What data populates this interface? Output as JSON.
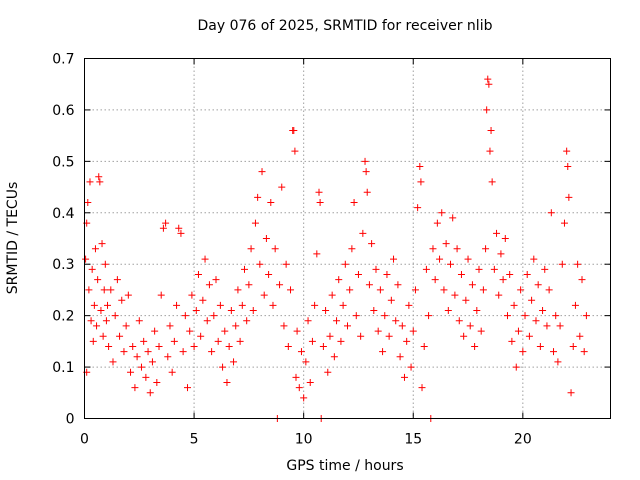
{
  "chart_data": {
    "type": "scatter",
    "title": "Day 076 of 2025, SRMTID for receiver nlib",
    "xlabel": "GPS time / hours",
    "ylabel": "SRMTID / TECUs",
    "xlim": [
      0,
      24
    ],
    "ylim": [
      0,
      0.7
    ],
    "xticks": [
      0,
      5,
      10,
      15,
      20
    ],
    "xtick_labels": [
      "0",
      "5",
      "10",
      "15",
      "20"
    ],
    "yticks": [
      0,
      0.1,
      0.2,
      0.3,
      0.4,
      0.5,
      0.6,
      0.7
    ],
    "ytick_labels": [
      "0",
      "0.1",
      "0.2",
      "0.3",
      "0.4",
      "0.5",
      "0.6",
      "0.7"
    ],
    "grid": true,
    "marker": "+",
    "color": "#ff0000",
    "series": [
      {
        "name": "SRMTID",
        "points": [
          [
            0.05,
            0.31
          ],
          [
            0.1,
            0.38
          ],
          [
            0.1,
            0.09
          ],
          [
            0.15,
            0.42
          ],
          [
            0.2,
            0.25
          ],
          [
            0.25,
            0.46
          ],
          [
            0.3,
            0.19
          ],
          [
            0.35,
            0.29
          ],
          [
            0.4,
            0.15
          ],
          [
            0.45,
            0.22
          ],
          [
            0.5,
            0.33
          ],
          [
            0.55,
            0.18
          ],
          [
            0.6,
            0.27
          ],
          [
            0.65,
            0.47
          ],
          [
            0.7,
            0.46
          ],
          [
            0.75,
            0.21
          ],
          [
            0.8,
            0.34
          ],
          [
            0.85,
            0.16
          ],
          [
            0.9,
            0.25
          ],
          [
            0.95,
            0.3
          ],
          [
            1.0,
            0.19
          ],
          [
            1.05,
            0.22
          ],
          [
            1.1,
            0.14
          ],
          [
            1.2,
            0.25
          ],
          [
            1.3,
            0.11
          ],
          [
            1.4,
            0.2
          ],
          [
            1.5,
            0.27
          ],
          [
            1.6,
            0.16
          ],
          [
            1.7,
            0.23
          ],
          [
            1.8,
            0.13
          ],
          [
            1.9,
            0.18
          ],
          [
            2.0,
            0.24
          ],
          [
            2.1,
            0.09
          ],
          [
            2.2,
            0.14
          ],
          [
            2.3,
            0.06
          ],
          [
            2.4,
            0.12
          ],
          [
            2.5,
            0.19
          ],
          [
            2.6,
            0.1
          ],
          [
            2.7,
            0.15
          ],
          [
            2.8,
            0.08
          ],
          [
            2.9,
            0.13
          ],
          [
            3.0,
            0.05
          ],
          [
            3.1,
            0.11
          ],
          [
            3.2,
            0.17
          ],
          [
            3.3,
            0.07
          ],
          [
            3.4,
            0.14
          ],
          [
            3.5,
            0.24
          ],
          [
            3.6,
            0.37
          ],
          [
            3.7,
            0.38
          ],
          [
            3.8,
            0.12
          ],
          [
            3.9,
            0.18
          ],
          [
            4.0,
            0.09
          ],
          [
            4.1,
            0.15
          ],
          [
            4.2,
            0.22
          ],
          [
            4.3,
            0.37
          ],
          [
            4.4,
            0.36
          ],
          [
            4.5,
            0.13
          ],
          [
            4.6,
            0.2
          ],
          [
            4.7,
            0.06
          ],
          [
            4.8,
            0.17
          ],
          [
            4.9,
            0.24
          ],
          [
            5.0,
            0.14
          ],
          [
            5.1,
            0.21
          ],
          [
            5.2,
            0.28
          ],
          [
            5.3,
            0.16
          ],
          [
            5.4,
            0.23
          ],
          [
            5.5,
            0.31
          ],
          [
            5.6,
            0.19
          ],
          [
            5.7,
            0.26
          ],
          [
            5.8,
            0.13
          ],
          [
            5.9,
            0.2
          ],
          [
            6.0,
            0.27
          ],
          [
            6.1,
            0.15
          ],
          [
            6.2,
            0.22
          ],
          [
            6.3,
            0.1
          ],
          [
            6.4,
            0.17
          ],
          [
            6.5,
            0.07
          ],
          [
            6.6,
            0.14
          ],
          [
            6.7,
            0.21
          ],
          [
            6.8,
            0.11
          ],
          [
            6.9,
            0.18
          ],
          [
            7.0,
            0.25
          ],
          [
            7.1,
            0.15
          ],
          [
            7.2,
            0.22
          ],
          [
            7.3,
            0.29
          ],
          [
            7.4,
            0.19
          ],
          [
            7.5,
            0.26
          ],
          [
            7.6,
            0.33
          ],
          [
            7.7,
            0.21
          ],
          [
            7.8,
            0.38
          ],
          [
            7.9,
            0.43
          ],
          [
            8.0,
            0.3
          ],
          [
            8.1,
            0.48
          ],
          [
            8.2,
            0.24
          ],
          [
            8.3,
            0.35
          ],
          [
            8.4,
            0.28
          ],
          [
            8.5,
            0.42
          ],
          [
            8.6,
            0.22
          ],
          [
            8.7,
            0.33
          ],
          [
            8.8,
            0.0
          ],
          [
            8.9,
            0.26
          ],
          [
            9.0,
            0.45
          ],
          [
            9.1,
            0.18
          ],
          [
            9.2,
            0.3
          ],
          [
            9.3,
            0.14
          ],
          [
            9.4,
            0.25
          ],
          [
            9.5,
            0.56
          ],
          [
            9.55,
            0.56
          ],
          [
            9.6,
            0.52
          ],
          [
            9.65,
            0.08
          ],
          [
            9.7,
            0.17
          ],
          [
            9.8,
            0.06
          ],
          [
            9.9,
            0.13
          ],
          [
            10.0,
            0.04
          ],
          [
            10.1,
            0.11
          ],
          [
            10.2,
            0.19
          ],
          [
            10.3,
            0.07
          ],
          [
            10.4,
            0.15
          ],
          [
            10.5,
            0.22
          ],
          [
            10.6,
            0.32
          ],
          [
            10.7,
            0.44
          ],
          [
            10.75,
            0.42
          ],
          [
            10.8,
            0.0
          ],
          [
            10.9,
            0.14
          ],
          [
            11.0,
            0.21
          ],
          [
            11.1,
            0.09
          ],
          [
            11.2,
            0.16
          ],
          [
            11.3,
            0.24
          ],
          [
            11.4,
            0.12
          ],
          [
            11.5,
            0.19
          ],
          [
            11.6,
            0.27
          ],
          [
            11.7,
            0.15
          ],
          [
            11.8,
            0.22
          ],
          [
            11.9,
            0.3
          ],
          [
            12.0,
            0.18
          ],
          [
            12.1,
            0.25
          ],
          [
            12.2,
            0.33
          ],
          [
            12.3,
            0.42
          ],
          [
            12.4,
            0.2
          ],
          [
            12.5,
            0.28
          ],
          [
            12.6,
            0.16
          ],
          [
            12.7,
            0.36
          ],
          [
            12.8,
            0.5
          ],
          [
            12.85,
            0.48
          ],
          [
            12.9,
            0.44
          ],
          [
            13.0,
            0.26
          ],
          [
            13.1,
            0.34
          ],
          [
            13.2,
            0.21
          ],
          [
            13.3,
            0.29
          ],
          [
            13.4,
            0.17
          ],
          [
            13.5,
            0.25
          ],
          [
            13.6,
            0.13
          ],
          [
            13.7,
            0.2
          ],
          [
            13.8,
            0.28
          ],
          [
            13.9,
            0.16
          ],
          [
            14.0,
            0.23
          ],
          [
            14.1,
            0.31
          ],
          [
            14.2,
            0.19
          ],
          [
            14.3,
            0.26
          ],
          [
            14.4,
            0.12
          ],
          [
            14.5,
            0.18
          ],
          [
            14.6,
            0.08
          ],
          [
            14.7,
            0.15
          ],
          [
            14.8,
            0.22
          ],
          [
            14.9,
            0.1
          ],
          [
            15.0,
            0.17
          ],
          [
            15.1,
            0.25
          ],
          [
            15.2,
            0.41
          ],
          [
            15.3,
            0.49
          ],
          [
            15.35,
            0.46
          ],
          [
            15.4,
            0.06
          ],
          [
            15.5,
            0.14
          ],
          [
            15.6,
            0.29
          ],
          [
            15.7,
            0.2
          ],
          [
            15.8,
            0.0
          ],
          [
            15.9,
            0.33
          ],
          [
            16.0,
            0.27
          ],
          [
            16.1,
            0.38
          ],
          [
            16.2,
            0.31
          ],
          [
            16.3,
            0.4
          ],
          [
            16.4,
            0.25
          ],
          [
            16.5,
            0.34
          ],
          [
            16.6,
            0.21
          ],
          [
            16.7,
            0.3
          ],
          [
            16.8,
            0.39
          ],
          [
            16.9,
            0.24
          ],
          [
            17.0,
            0.33
          ],
          [
            17.1,
            0.19
          ],
          [
            17.2,
            0.28
          ],
          [
            17.3,
            0.16
          ],
          [
            17.4,
            0.23
          ],
          [
            17.5,
            0.31
          ],
          [
            17.6,
            0.18
          ],
          [
            17.7,
            0.26
          ],
          [
            17.8,
            0.14
          ],
          [
            17.9,
            0.21
          ],
          [
            18.0,
            0.29
          ],
          [
            18.1,
            0.17
          ],
          [
            18.2,
            0.25
          ],
          [
            18.3,
            0.33
          ],
          [
            18.35,
            0.6
          ],
          [
            18.4,
            0.66
          ],
          [
            18.45,
            0.65
          ],
          [
            18.5,
            0.52
          ],
          [
            18.55,
            0.56
          ],
          [
            18.6,
            0.46
          ],
          [
            18.7,
            0.29
          ],
          [
            18.8,
            0.36
          ],
          [
            18.9,
            0.24
          ],
          [
            19.0,
            0.32
          ],
          [
            19.1,
            0.27
          ],
          [
            19.2,
            0.35
          ],
          [
            19.3,
            0.2
          ],
          [
            19.4,
            0.28
          ],
          [
            19.5,
            0.15
          ],
          [
            19.6,
            0.22
          ],
          [
            19.7,
            0.1
          ],
          [
            19.8,
            0.17
          ],
          [
            19.9,
            0.25
          ],
          [
            20.0,
            0.13
          ],
          [
            20.1,
            0.2
          ],
          [
            20.2,
            0.28
          ],
          [
            20.3,
            0.16
          ],
          [
            20.4,
            0.23
          ],
          [
            20.5,
            0.31
          ],
          [
            20.6,
            0.19
          ],
          [
            20.7,
            0.26
          ],
          [
            20.8,
            0.14
          ],
          [
            20.9,
            0.21
          ],
          [
            21.0,
            0.29
          ],
          [
            21.1,
            0.18
          ],
          [
            21.2,
            0.25
          ],
          [
            21.3,
            0.4
          ],
          [
            21.4,
            0.13
          ],
          [
            21.5,
            0.2
          ],
          [
            21.6,
            0.11
          ],
          [
            21.7,
            0.18
          ],
          [
            21.8,
            0.3
          ],
          [
            21.9,
            0.38
          ],
          [
            22.0,
            0.52
          ],
          [
            22.05,
            0.49
          ],
          [
            22.1,
            0.43
          ],
          [
            22.2,
            0.05
          ],
          [
            22.3,
            0.14
          ],
          [
            22.4,
            0.22
          ],
          [
            22.5,
            0.3
          ],
          [
            22.6,
            0.16
          ],
          [
            22.7,
            0.27
          ],
          [
            22.8,
            0.13
          ],
          [
            22.9,
            0.2
          ]
        ]
      }
    ]
  }
}
